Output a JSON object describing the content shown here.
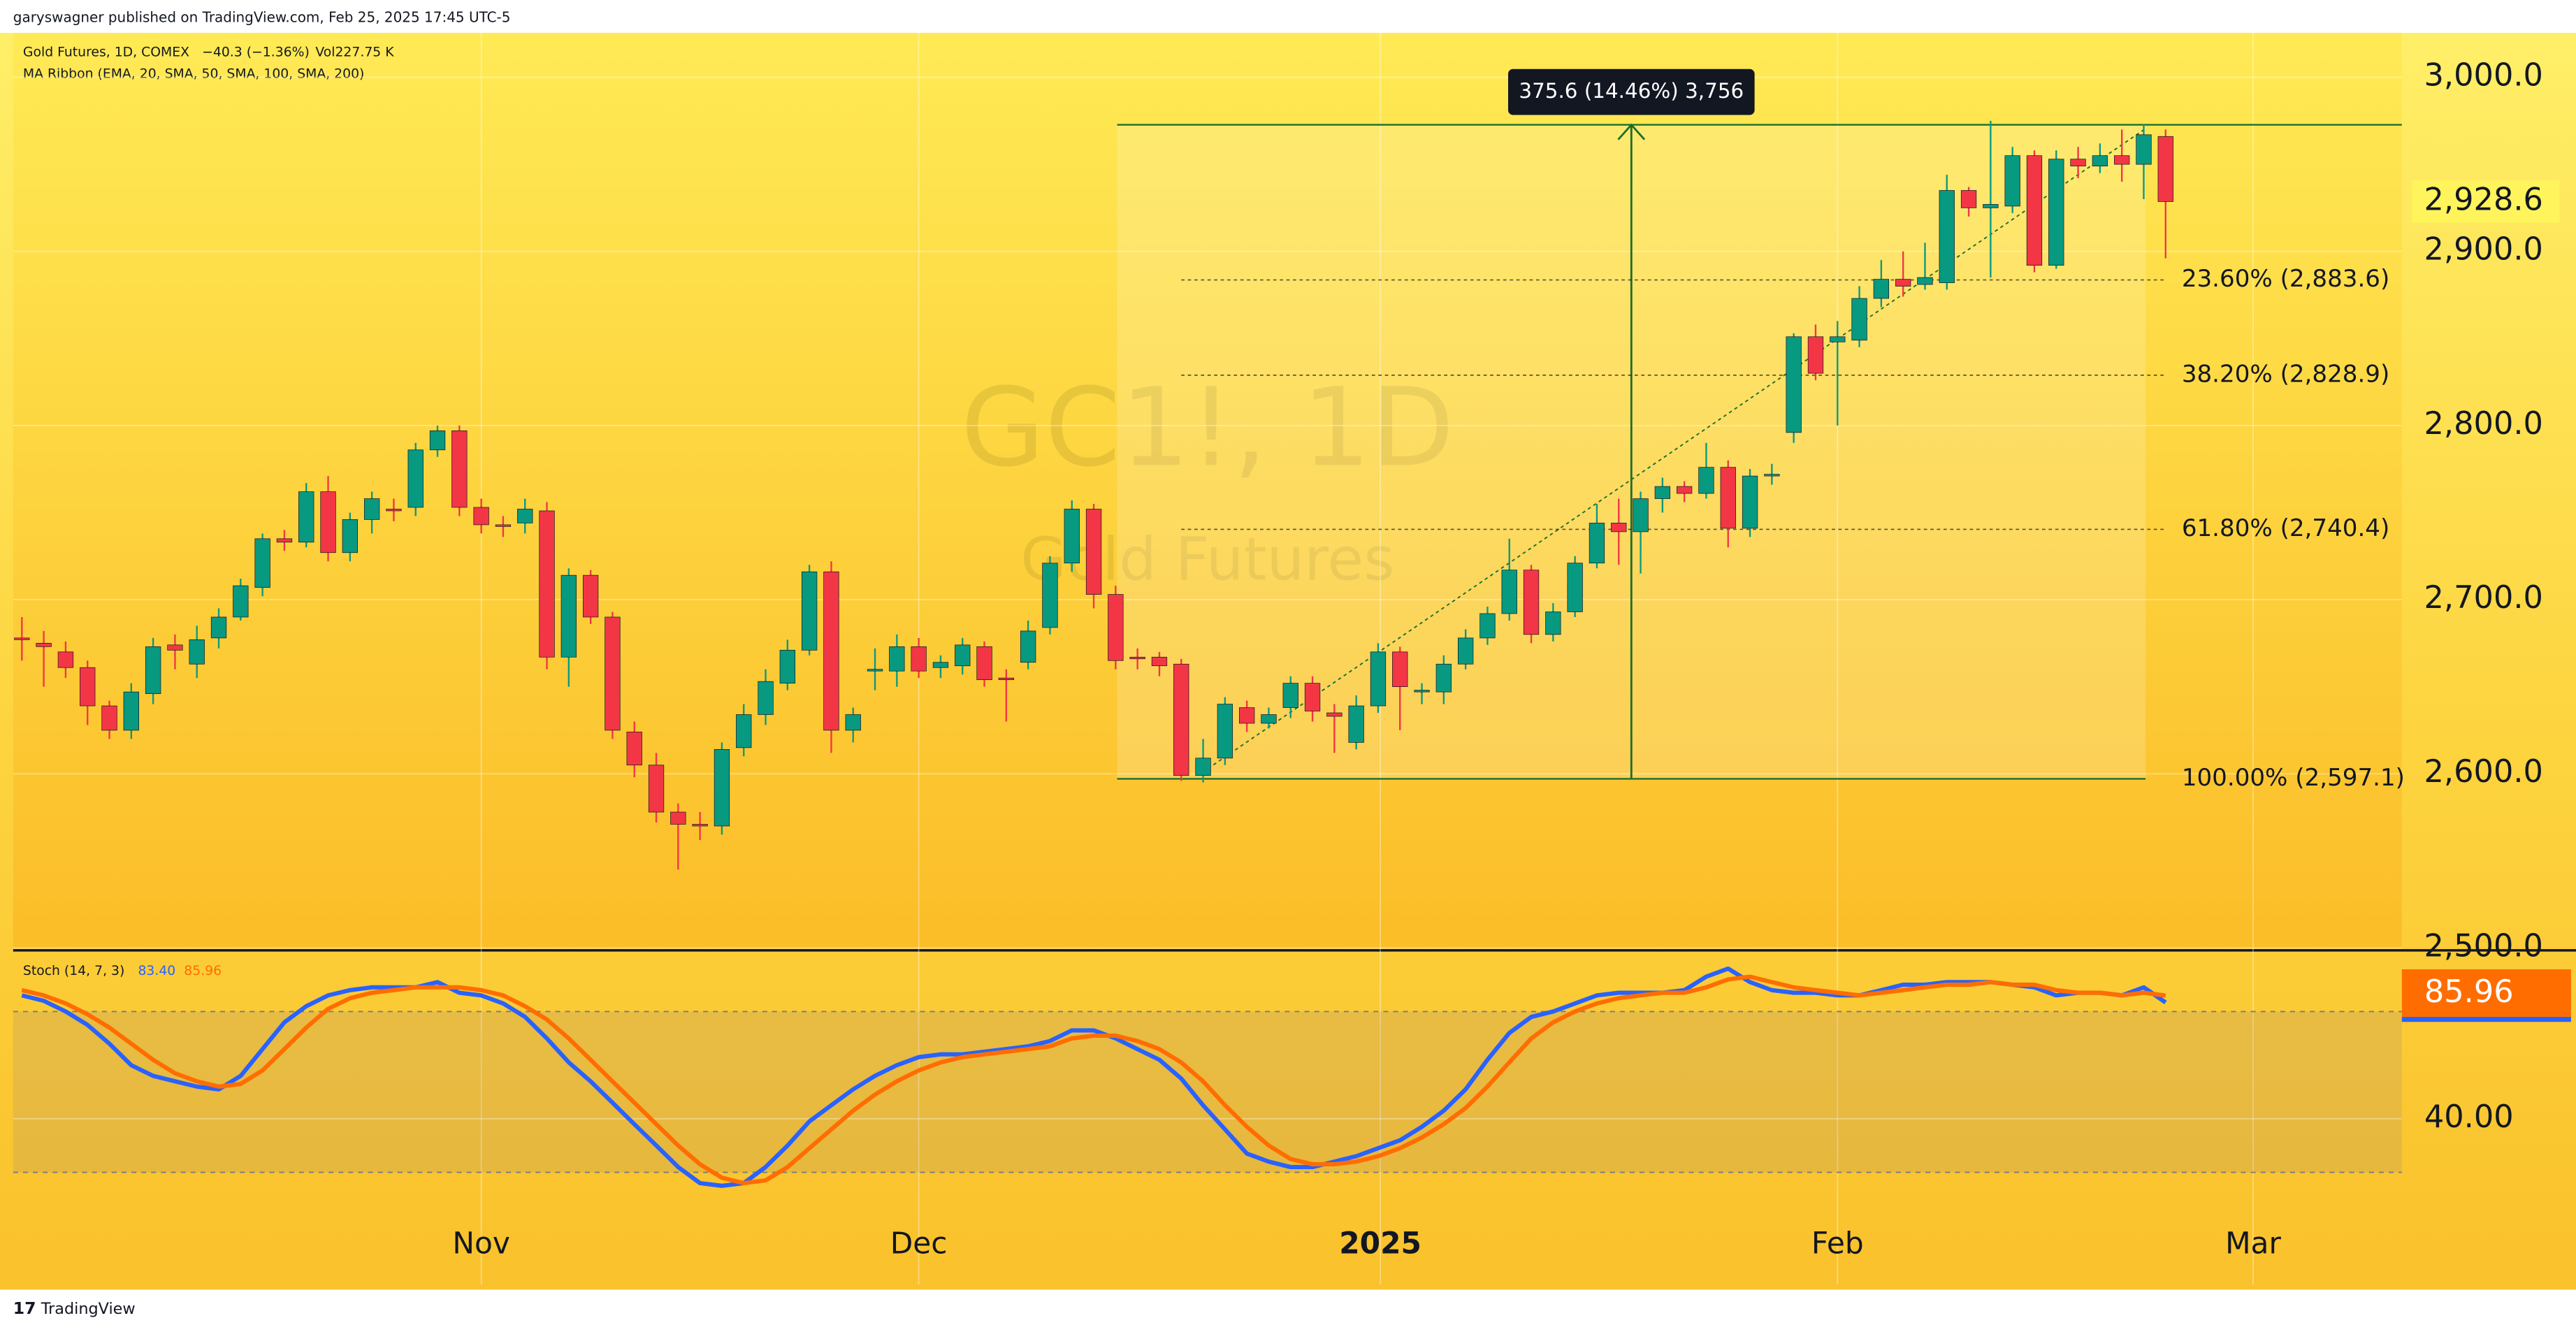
{
  "header": {
    "published": "garyswagner published on TradingView.com, Feb 25, 2025 17:45 UTC-5",
    "symbol": "Gold Futures, 1D, COMEX",
    "change": "−40.3 (−1.36%)",
    "volume": "Vol227.75 K",
    "indicator": "MA Ribbon (EMA, 20, SMA, 50, SMA, 100, SMA, 200)"
  },
  "watermark": {
    "symbol": "GC1!, 1D",
    "name": "Gold Futures"
  },
  "footer": "TradingView",
  "chart_data": [
    {
      "type": "candlestick",
      "up_color": "#089981",
      "down_color": "#f23645",
      "open": [
        2678,
        2675,
        2670,
        2661,
        2639,
        2625,
        2646,
        2674,
        2663,
        2678,
        2690,
        2707,
        2735,
        2733,
        2762,
        2727,
        2746,
        2752,
        2753,
        2786,
        2797,
        2753,
        2743,
        2744,
        2751,
        2667,
        2714,
        2690,
        2624,
        2605,
        2578,
        2571,
        2570,
        2615,
        2634,
        2652,
        2671,
        2716,
        2625,
        2659,
        2659,
        2673,
        2661,
        2662,
        2673,
        2655,
        2664,
        2684,
        2721,
        2752,
        2703,
        2667,
        2667,
        2663,
        2599,
        2609,
        2638,
        2629,
        2638,
        2652,
        2635,
        2618,
        2639,
        2670,
        2647,
        2647,
        2663,
        2678,
        2692,
        2717,
        2680,
        2693,
        2721,
        2744,
        2739,
        2758,
        2765,
        2761,
        2776,
        2741,
        2771,
        2796,
        2851,
        2848,
        2849,
        2873,
        2884,
        2881,
        2882,
        2935,
        2925,
        2926,
        2955,
        2892,
        2953,
        2949,
        2955,
        2950,
        2966
      ],
      "high": [
        2690,
        2682,
        2676,
        2665,
        2642,
        2652,
        2678,
        2680,
        2685,
        2695,
        2712,
        2738,
        2740,
        2767,
        2771,
        2750,
        2762,
        2758,
        2790,
        2800,
        2800,
        2758,
        2748,
        2758,
        2756,
        2718,
        2717,
        2693,
        2630,
        2612,
        2583,
        2578,
        2618,
        2640,
        2660,
        2677,
        2720,
        2722,
        2638,
        2672,
        2680,
        2678,
        2668,
        2678,
        2676,
        2660,
        2688,
        2725,
        2757,
        2755,
        2708,
        2672,
        2670,
        2666,
        2620,
        2644,
        2642,
        2638,
        2656,
        2656,
        2640,
        2645,
        2675,
        2673,
        2652,
        2668,
        2683,
        2696,
        2735,
        2720,
        2698,
        2725,
        2755,
        2758,
        2762,
        2770,
        2768,
        2790,
        2780,
        2775,
        2778,
        2853,
        2858,
        2860,
        2880,
        2895,
        2900,
        2905,
        2944,
        2937,
        2975,
        2960,
        2958,
        2958,
        2960,
        2962,
        2970,
        2973,
        2970
      ],
      "low": [
        2665,
        2650,
        2655,
        2628,
        2620,
        2620,
        2640,
        2660,
        2655,
        2672,
        2688,
        2702,
        2728,
        2730,
        2722,
        2722,
        2738,
        2745,
        2748,
        2782,
        2748,
        2738,
        2736,
        2738,
        2660,
        2650,
        2686,
        2620,
        2598,
        2572,
        2545,
        2562,
        2565,
        2610,
        2628,
        2648,
        2668,
        2612,
        2618,
        2648,
        2650,
        2655,
        2655,
        2657,
        2650,
        2630,
        2660,
        2680,
        2716,
        2695,
        2660,
        2660,
        2656,
        2596,
        2595,
        2605,
        2624,
        2626,
        2632,
        2630,
        2612,
        2614,
        2635,
        2625,
        2640,
        2640,
        2660,
        2674,
        2688,
        2675,
        2676,
        2690,
        2718,
        2720,
        2715,
        2750,
        2756,
        2758,
        2730,
        2736,
        2766,
        2790,
        2826,
        2800,
        2845,
        2868,
        2874,
        2878,
        2878,
        2920,
        2885,
        2922,
        2888,
        2890,
        2942,
        2945,
        2940,
        2930,
        2896
      ],
      "close": [
        2677,
        2673,
        2661,
        2639,
        2625,
        2647,
        2673,
        2671,
        2677,
        2690,
        2708,
        2735,
        2733,
        2762,
        2727,
        2746,
        2758,
        2751,
        2786,
        2797,
        2753,
        2743,
        2742,
        2752,
        2667,
        2714,
        2690,
        2625,
        2605,
        2578,
        2571,
        2570,
        2614,
        2634,
        2653,
        2671,
        2716,
        2625,
        2634,
        2660,
        2673,
        2659,
        2664,
        2674,
        2654,
        2654,
        2682,
        2721,
        2752,
        2703,
        2665,
        2666,
        2662,
        2599,
        2609,
        2640,
        2629,
        2634,
        2652,
        2636,
        2633,
        2639,
        2670,
        2650,
        2648,
        2663,
        2678,
        2692,
        2717,
        2680,
        2693,
        2721,
        2744,
        2739,
        2758,
        2765,
        2761,
        2776,
        2741,
        2771,
        2772,
        2851,
        2830,
        2851,
        2873,
        2884,
        2880,
        2885,
        2935,
        2925,
        2927,
        2955,
        2892,
        2953,
        2949,
        2955,
        2950,
        2967,
        2928.6
      ],
      "last_price_label": "2,928.6",
      "xlim": [
        -0.4,
        108.8
      ],
      "xticks": [
        {
          "value": 21,
          "label": "Nov"
        },
        {
          "value": 41,
          "label": "Dec"
        },
        {
          "value": 62.1,
          "label": "2025"
        },
        {
          "value": 83,
          "label": "Feb"
        },
        {
          "value": 102,
          "label": "Mar"
        }
      ],
      "ylim": [
        2500,
        3025.5
      ],
      "yticks": [
        {
          "value": 2500,
          "label": "2,500.0"
        },
        {
          "value": 2600,
          "label": "2,600.0"
        },
        {
          "value": 2700,
          "label": "2,700.0"
        },
        {
          "value": 2800,
          "label": "2,800.0"
        },
        {
          "value": 2900,
          "label": "2,900.0"
        },
        {
          "value": 3000,
          "label": "3,000.0"
        }
      ],
      "grid": true,
      "fib": [
        {
          "label": "23.60% (2,883.6)",
          "price": 2883.6
        },
        {
          "label": "38.20% (2,828.9)",
          "price": 2828.9
        },
        {
          "label": "61.80% (2,740.4)",
          "price": 2740.4
        },
        {
          "label": "100.00% (2,597.1)",
          "price": 2597.1
        }
      ],
      "measure": {
        "label": "375.6 (14.46%) 3,756",
        "change": 375.6
      }
    },
    {
      "type": "line",
      "title": "Stoch (14, 7, 3)",
      "series": [
        {
          "color": "#2962ff",
          "last_label": "83.40",
          "values": [
            86,
            84,
            80,
            75,
            68,
            60,
            56,
            54,
            52,
            51,
            56,
            66,
            76,
            82,
            86,
            88,
            89,
            89,
            89,
            91,
            87,
            86,
            83,
            78,
            70,
            61,
            54,
            46,
            38,
            30,
            22,
            16,
            15,
            16,
            22,
            30,
            39,
            45,
            51,
            56,
            60,
            63,
            64,
            64,
            65,
            66,
            67,
            69,
            73,
            73,
            70,
            66,
            62,
            55,
            45,
            36,
            27,
            24,
            22,
            22,
            24,
            26,
            29,
            32,
            37,
            43,
            51,
            62,
            72,
            78,
            80,
            83,
            86,
            87,
            87,
            87,
            88,
            93,
            96,
            91,
            88,
            87,
            87,
            86,
            86,
            88,
            90,
            90,
            91,
            91,
            91,
            90,
            89,
            86,
            87,
            87,
            86,
            89,
            83.4
          ]
        },
        {
          "color": "#ff6d00",
          "last_label": "85.96",
          "values": [
            88,
            86,
            83,
            79,
            74,
            68,
            62,
            57,
            54,
            52,
            53,
            58,
            66,
            74,
            81,
            85,
            87,
            88,
            89,
            89,
            89,
            88,
            86,
            82,
            77,
            70,
            62,
            54,
            46,
            38,
            30,
            23,
            18,
            16,
            17,
            22,
            29,
            36,
            43,
            49,
            54,
            58,
            61,
            63,
            64,
            65,
            66,
            67,
            70,
            71,
            71,
            69,
            66,
            61,
            54,
            45,
            37,
            30,
            25,
            23,
            23,
            24,
            26,
            29,
            33,
            38,
            44,
            52,
            61,
            70,
            76,
            80,
            83,
            85,
            86,
            87,
            87,
            89,
            92,
            93,
            91,
            89,
            88,
            87,
            86,
            87,
            88,
            89,
            90,
            90,
            91,
            90,
            90,
            88,
            87,
            87,
            86,
            87,
            85.96
          ]
        }
      ],
      "ylim": [
        -21.9,
        101.9
      ],
      "yticks": [
        {
          "value": 40,
          "label": "40.00"
        }
      ],
      "bands": [
        20,
        80
      ]
    }
  ]
}
